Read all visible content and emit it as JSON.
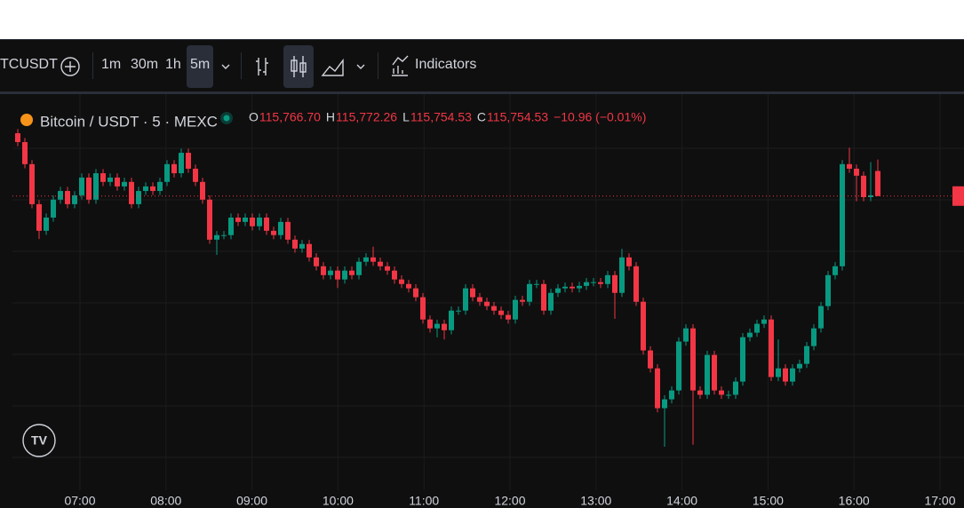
{
  "toolbar": {
    "symbol": "TCUSDT",
    "intervals": [
      "1m",
      "30m",
      "1h",
      "5m"
    ],
    "indicators": "Indicators"
  },
  "legend": {
    "title": "Bitcoin / USDT · 5 · MEXC",
    "ohlc": [
      {
        "key": "O",
        "value": "115,766.70"
      },
      {
        "key": "H",
        "value": "115,772.26"
      },
      {
        "key": "L",
        "value": "115,754.53"
      },
      {
        "key": "C",
        "value": "115,754.53"
      }
    ],
    "change": "−10.96 (−0.01%)"
  },
  "chart": {
    "ylim": [
      115630,
      115785
    ],
    "up_color": "#089981",
    "down_color": "#f23645",
    "time_labels": [
      "07:00",
      "08:00",
      "09:00",
      "10:00",
      "11:00",
      "12:00",
      "13:00",
      "14:00",
      "15:00",
      "16:00",
      "17:00"
    ],
    "candles": [
      [
        115785.0,
        115787.0,
        115778.7,
        115780.7
      ],
      [
        115780.7,
        115782.7,
        115768.0,
        115770.0
      ],
      [
        115770.0,
        115772.0,
        115748.6,
        115750.6
      ],
      [
        115750.6,
        115752.6,
        115733.7,
        115737.7
      ],
      [
        115737.7,
        115746.1,
        115735.7,
        115744.1
      ],
      [
        115744.1,
        115754.8,
        115742.1,
        115752.8
      ],
      [
        115752.8,
        115759.0,
        115750.8,
        115757.0
      ],
      [
        115757.0,
        115759.0,
        115748.6,
        115750.6
      ],
      [
        115750.6,
        115756.9,
        115748.6,
        115754.9
      ],
      [
        115754.9,
        115765.5,
        115752.9,
        115763.5
      ],
      [
        115763.5,
        115765.5,
        115750.8,
        115752.8
      ],
      [
        115752.8,
        115767.6,
        115750.8,
        115765.6
      ],
      [
        115765.6,
        115767.6,
        115759.4,
        115761.4
      ],
      [
        115761.4,
        115765.5,
        115759.4,
        115763.5
      ],
      [
        115763.5,
        115765.5,
        115757.2,
        115759.2
      ],
      [
        115759.2,
        115763.4,
        115757.2,
        115761.4
      ],
      [
        115761.4,
        115763.4,
        115748.6,
        115750.6
      ],
      [
        115750.6,
        115759.0,
        115748.6,
        115757.0
      ],
      [
        115757.0,
        115761.2,
        115755.0,
        115759.2
      ],
      [
        115759.2,
        115761.2,
        115755.0,
        115757.0
      ],
      [
        115757.0,
        115763.4,
        115755.0,
        115761.4
      ],
      [
        115761.4,
        115772.0,
        115759.4,
        115770.0
      ],
      [
        115770.0,
        115772.0,
        115763.6,
        115765.6
      ],
      [
        115765.6,
        115777.5,
        115763.6,
        115775.5
      ],
      [
        115775.5,
        115777.5,
        115765.8,
        115767.8
      ],
      [
        115767.8,
        115769.8,
        115759.4,
        115761.4
      ],
      [
        115761.4,
        115763.4,
        115750.8,
        115752.8
      ],
      [
        115752.8,
        115754.8,
        115731.4,
        115733.4
      ],
      [
        115733.4,
        115737.6,
        115726.0,
        115735.6
      ],
      [
        115735.6,
        115737.6,
        115733.6,
        115735.6
      ],
      [
        115735.6,
        115746.1,
        115733.6,
        115744.1
      ],
      [
        115744.1,
        115746.1,
        115740.0,
        115742.0
      ],
      [
        115742.0,
        115746.1,
        115740.0,
        115744.1
      ],
      [
        115744.1,
        115746.1,
        115737.9,
        115739.9
      ],
      [
        115739.9,
        115746.1,
        115737.9,
        115744.1
      ],
      [
        115744.1,
        115746.1,
        115735.7,
        115737.7
      ],
      [
        115737.7,
        115739.7,
        115733.6,
        115735.6
      ],
      [
        115735.6,
        115744.0,
        115733.6,
        115742.0
      ],
      [
        115742.0,
        115744.0,
        115731.4,
        115733.4
      ],
      [
        115733.4,
        115735.4,
        115727.1,
        115729.1
      ],
      [
        115729.1,
        115733.3,
        115727.1,
        115731.3
      ],
      [
        115731.3,
        115733.3,
        115722.8,
        115724.8
      ],
      [
        115724.8,
        115726.8,
        115718.5,
        115720.5
      ],
      [
        115720.5,
        115722.5,
        115714.2,
        115716.2
      ],
      [
        115716.2,
        115720.4,
        115714.2,
        115718.4
      ],
      [
        115718.4,
        115720.4,
        115710.0,
        115714.1
      ],
      [
        115714.1,
        115720.4,
        115712.1,
        115718.4
      ],
      [
        115718.4,
        115720.4,
        115714.2,
        115716.2
      ],
      [
        115716.2,
        115724.7,
        115714.2,
        115722.7
      ],
      [
        115722.7,
        115726.8,
        115720.7,
        115724.8
      ],
      [
        115724.8,
        115730.0,
        115720.7,
        115722.7
      ],
      [
        115722.7,
        115724.7,
        115718.5,
        115720.5
      ],
      [
        115720.5,
        115722.5,
        115716.4,
        115718.4
      ],
      [
        115718.4,
        115720.4,
        115712.1,
        115714.1
      ],
      [
        115714.1,
        115716.1,
        115709.9,
        115711.9
      ],
      [
        115711.9,
        115713.9,
        115707.8,
        115709.8
      ],
      [
        115709.8,
        115711.8,
        115703.5,
        115705.5
      ],
      [
        115705.5,
        115707.5,
        115692.7,
        115694.7
      ],
      [
        115694.7,
        115696.7,
        115688.4,
        115690.4
      ],
      [
        115690.4,
        115694.6,
        115686.0,
        115692.6
      ],
      [
        115692.6,
        115694.6,
        115685.0,
        115689.5
      ],
      [
        115689.5,
        115701.0,
        115687.5,
        115699.0
      ],
      [
        115699.0,
        115701.0,
        115697.0,
        115699.0
      ],
      [
        115699.0,
        115711.8,
        115697.0,
        115709.8
      ],
      [
        115709.8,
        115711.8,
        115703.5,
        115705.5
      ],
      [
        115705.5,
        115707.5,
        115701.3,
        115703.3
      ],
      [
        115703.3,
        115705.3,
        115699.2,
        115701.2
      ],
      [
        115701.2,
        115703.2,
        115697.0,
        115699.0
      ],
      [
        115699.0,
        115701.0,
        115694.9,
        115696.9
      ],
      [
        115696.9,
        115698.9,
        115692.7,
        115694.7
      ],
      [
        115694.7,
        115706.2,
        115692.7,
        115704.2
      ],
      [
        115704.2,
        115706.2,
        115701.3,
        115703.3
      ],
      [
        115703.3,
        115713.9,
        115701.3,
        115711.9
      ],
      [
        115711.9,
        115713.9,
        115709.9,
        115711.9
      ],
      [
        115711.9,
        115713.9,
        115697.0,
        115699.0
      ],
      [
        115699.0,
        115709.6,
        115697.0,
        115707.6
      ],
      [
        115707.6,
        115711.8,
        115705.6,
        115709.8
      ],
      [
        115709.8,
        115712.6,
        115707.8,
        115710.6
      ],
      [
        115710.6,
        115712.6,
        115707.8,
        115709.8
      ],
      [
        115709.8,
        115713.0,
        115707.8,
        115711.0
      ],
      [
        115711.0,
        115714.8,
        115709.0,
        115712.8
      ],
      [
        115712.8,
        115714.8,
        115710.8,
        115712.8
      ],
      [
        115712.8,
        115714.8,
        115709.9,
        115711.9
      ],
      [
        115711.9,
        115718.2,
        115709.9,
        115716.2
      ],
      [
        115716.2,
        115718.2,
        115695.0,
        115707.6
      ],
      [
        115707.6,
        115729.0,
        115705.6,
        115724.8
      ],
      [
        115724.8,
        115726.8,
        115718.5,
        115720.5
      ],
      [
        115720.5,
        115722.5,
        115701.3,
        115703.3
      ],
      [
        115703.3,
        115705.3,
        115677.7,
        115679.7
      ],
      [
        115679.7,
        115681.7,
        115669.0,
        115671.0
      ],
      [
        115671.0,
        115673.0,
        115649.7,
        115651.7
      ],
      [
        115651.7,
        115658.0,
        115633.0,
        115656.0
      ],
      [
        115656.0,
        115662.3,
        115654.0,
        115660.3
      ],
      [
        115660.3,
        115686.0,
        115658.3,
        115684.0
      ],
      [
        115684.0,
        115692.4,
        115682.0,
        115690.4
      ],
      [
        115690.4,
        115692.4,
        115634.0,
        115660.3
      ],
      [
        115660.3,
        115662.3,
        115656.2,
        115658.2
      ],
      [
        115658.2,
        115679.5,
        115656.2,
        115677.5
      ],
      [
        115677.5,
        115679.5,
        115658.3,
        115660.3
      ],
      [
        115660.3,
        115662.3,
        115656.2,
        115658.2
      ],
      [
        115658.2,
        115660.2,
        115656.2,
        115658.2
      ],
      [
        115658.2,
        115666.6,
        115656.2,
        115664.6
      ],
      [
        115664.6,
        115688.1,
        115662.6,
        115686.1
      ],
      [
        115686.1,
        115690.3,
        115684.1,
        115688.3
      ],
      [
        115688.3,
        115694.6,
        115686.3,
        115692.6
      ],
      [
        115692.6,
        115696.7,
        115690.6,
        115694.7
      ],
      [
        115694.7,
        115696.7,
        115664.8,
        115666.8
      ],
      [
        115666.8,
        115685.0,
        115664.8,
        115671.0
      ],
      [
        115671.0,
        115673.0,
        115662.6,
        115664.6
      ],
      [
        115664.6,
        115673.0,
        115662.6,
        115671.0
      ],
      [
        115671.0,
        115675.2,
        115669.0,
        115673.2
      ],
      [
        115673.2,
        115683.8,
        115671.2,
        115681.8
      ],
      [
        115681.8,
        115692.4,
        115679.8,
        115690.4
      ],
      [
        115690.4,
        115703.2,
        115688.4,
        115701.2
      ],
      [
        115701.2,
        115718.2,
        115699.2,
        115716.2
      ],
      [
        115716.2,
        115722.5,
        115714.2,
        115720.5
      ],
      [
        115720.5,
        115772.0,
        115718.5,
        115770.0
      ],
      [
        115770.0,
        115778.0,
        115765.8,
        115767.8
      ],
      [
        115767.8,
        115769.8,
        115752.0,
        115764.4
      ],
      [
        115764.4,
        115766.4,
        115752.0,
        115754.0
      ],
      [
        115754.0,
        115771.0,
        115752.0,
        115754.9
      ],
      [
        115766.7,
        115772.26,
        115754.53,
        115754.53
      ]
    ]
  }
}
